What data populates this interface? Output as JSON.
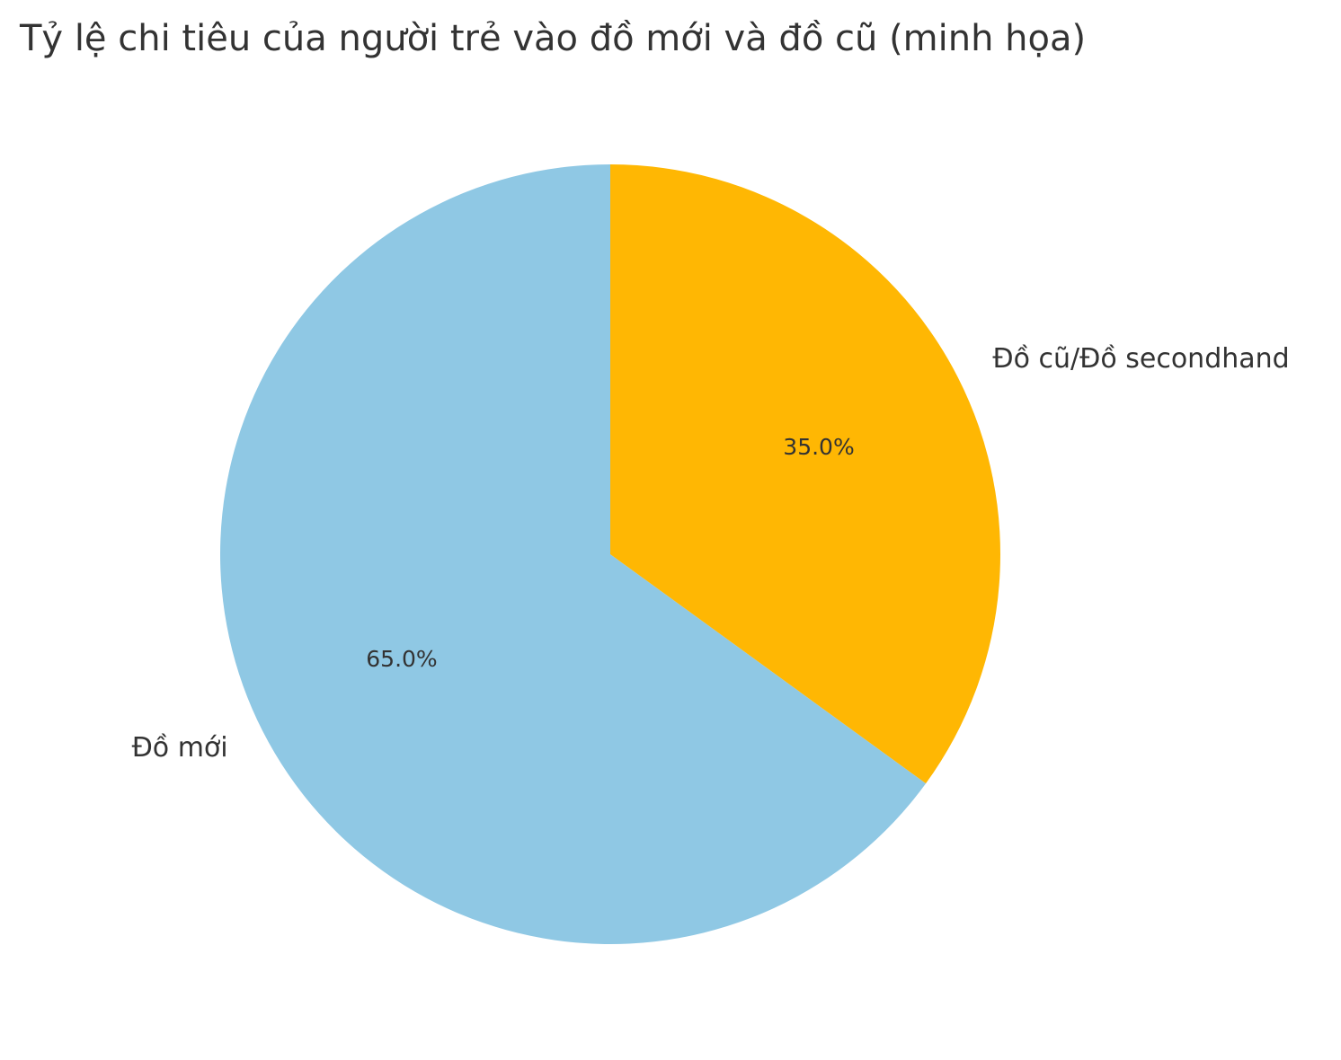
{
  "chart_data": {
    "type": "pie",
    "title": "Tỷ lệ chi tiêu của người trẻ vào đồ mới và đồ cũ (minh họa)",
    "categories": [
      "Đồ mới",
      "Đồ cũ/Đồ secondhand"
    ],
    "values": [
      65,
      35
    ],
    "value_labels": [
      "65.0%",
      "35.0%"
    ],
    "colors": [
      "#8fc8e4",
      "#ffb703"
    ]
  }
}
